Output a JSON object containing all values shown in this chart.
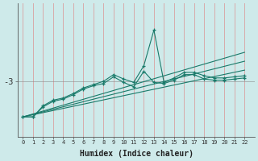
{
  "xlabel": "Humidex (Indice chaleur)",
  "bg_color": "#ceeaea",
  "grid_color": "#d9a0a0",
  "line_color": "#1a7a6a",
  "x_min": 0,
  "x_max": 23,
  "ytick_label": "-3",
  "ytick_val": -3,
  "y_min": -5.5,
  "y_max": 0.5,
  "series1_x": [
    0,
    1,
    2,
    3,
    4,
    5,
    6,
    7,
    8,
    9,
    10,
    11,
    12,
    13,
    14,
    15,
    16,
    17,
    18,
    19,
    20,
    21,
    22
  ],
  "series1_y": [
    -4.6,
    -4.6,
    -4.1,
    -3.85,
    -3.75,
    -3.55,
    -3.3,
    -3.15,
    -3.0,
    -2.7,
    -2.9,
    -3.05,
    -2.3,
    -0.7,
    -3.05,
    -2.85,
    -2.6,
    -2.6,
    -2.75,
    -2.85,
    -2.85,
    -2.8,
    -2.75
  ],
  "series2_x": [
    0,
    1,
    2,
    3,
    4,
    5,
    6,
    7,
    8,
    9,
    10,
    11,
    12,
    13,
    14,
    15,
    16,
    17,
    18,
    19,
    20,
    21,
    22
  ],
  "series2_y": [
    -4.6,
    -4.6,
    -4.15,
    -3.9,
    -3.8,
    -3.6,
    -3.35,
    -3.2,
    -3.1,
    -2.8,
    -3.05,
    -3.25,
    -2.55,
    -3.05,
    -3.1,
    -2.95,
    -2.7,
    -2.7,
    -2.9,
    -2.95,
    -2.95,
    -2.9,
    -2.85
  ],
  "trend1_x": [
    0,
    22
  ],
  "trend1_y": [
    -4.6,
    -2.5
  ],
  "trend2_x": [
    0,
    22
  ],
  "trend2_y": [
    -4.6,
    -2.1
  ],
  "trend3_x": [
    0,
    22
  ],
  "trend3_y": [
    -4.6,
    -1.7
  ]
}
